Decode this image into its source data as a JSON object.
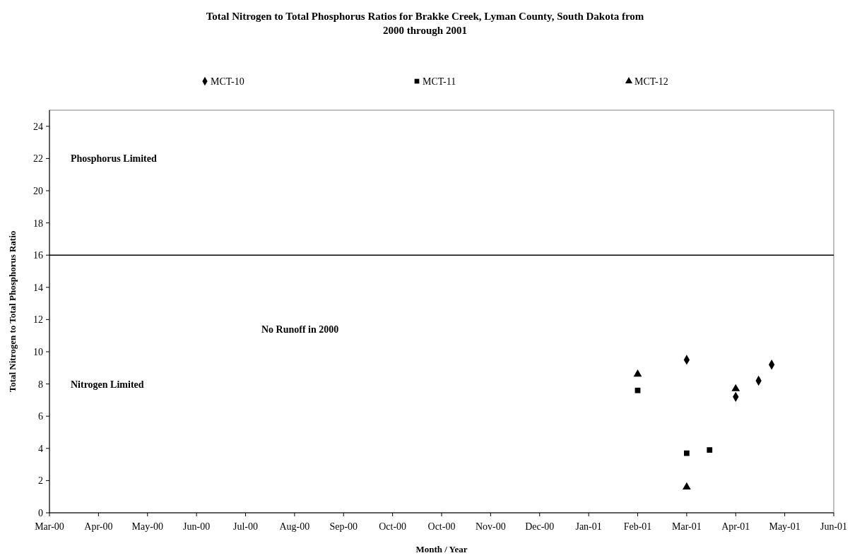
{
  "chart_data": {
    "type": "scatter",
    "title": "Total Nitrogen to Total Phosphorus Ratios for Brakke Creek, Lyman County, South Dakota from 2000 through 2001",
    "xlabel": "Month / Year",
    "ylabel": "Total Nitrogen to Total Phosphorus Ratio",
    "series": [
      {
        "name": "MCT-10",
        "color": "#000000",
        "marker": "diamond",
        "x": [
          "2001-03-30",
          "2001-04-29",
          "2001-05-13",
          "2001-05-21"
        ],
        "values": [
          9.5,
          7.2,
          8.2,
          9.2
        ]
      },
      {
        "name": "MCT-11",
        "color": "#000000",
        "marker": "square",
        "x": [
          "2001-02-28",
          "2001-03-30",
          "2001-04-13"
        ],
        "values": [
          7.6,
          3.7,
          3.9
        ]
      },
      {
        "name": "MCT-12",
        "color": "#000000",
        "marker": "triangle",
        "x": [
          "2001-02-28",
          "2001-03-30",
          "2001-04-29"
        ],
        "values": [
          8.6,
          1.6,
          7.7
        ]
      }
    ],
    "xlim": [
      "2000-03-05",
      "2001-06-28"
    ],
    "xticks": [
      {
        "value": "2000-03-05",
        "label": "Mar-00"
      },
      {
        "value": "2000-04-04",
        "label": "Apr-00"
      },
      {
        "value": "2000-05-04",
        "label": "May-00"
      },
      {
        "value": "2000-06-03",
        "label": "Jun-00"
      },
      {
        "value": "2000-07-03",
        "label": "Jul-00"
      },
      {
        "value": "2000-08-02",
        "label": "Aug-00"
      },
      {
        "value": "2000-09-01",
        "label": "Sep-00"
      },
      {
        "value": "2000-10-01",
        "label": "Oct-00"
      },
      {
        "value": "2000-10-31",
        "label": "Oct-00"
      },
      {
        "value": "2000-11-30",
        "label": "Nov-00"
      },
      {
        "value": "2000-12-30",
        "label": "Dec-00"
      },
      {
        "value": "2001-01-29",
        "label": "Jan-01"
      },
      {
        "value": "2001-02-28",
        "label": "Feb-01"
      },
      {
        "value": "2001-03-30",
        "label": "Mar-01"
      },
      {
        "value": "2001-04-29",
        "label": "Apr-01"
      },
      {
        "value": "2001-05-29",
        "label": "May-01"
      },
      {
        "value": "2001-06-28",
        "label": "Jun-01"
      }
    ],
    "ylim": [
      0,
      25
    ],
    "yticks": [
      0,
      2,
      4,
      6,
      8,
      10,
      12,
      14,
      16,
      18,
      20,
      22,
      24
    ],
    "ref_lines": [
      {
        "axis": "y",
        "value": 16,
        "color": "#000000"
      }
    ],
    "annotations": [
      "Phosphorus Limited",
      "No Runoff in 2000",
      "Nitrogen Limited"
    ],
    "legend": "top",
    "grid": false
  }
}
